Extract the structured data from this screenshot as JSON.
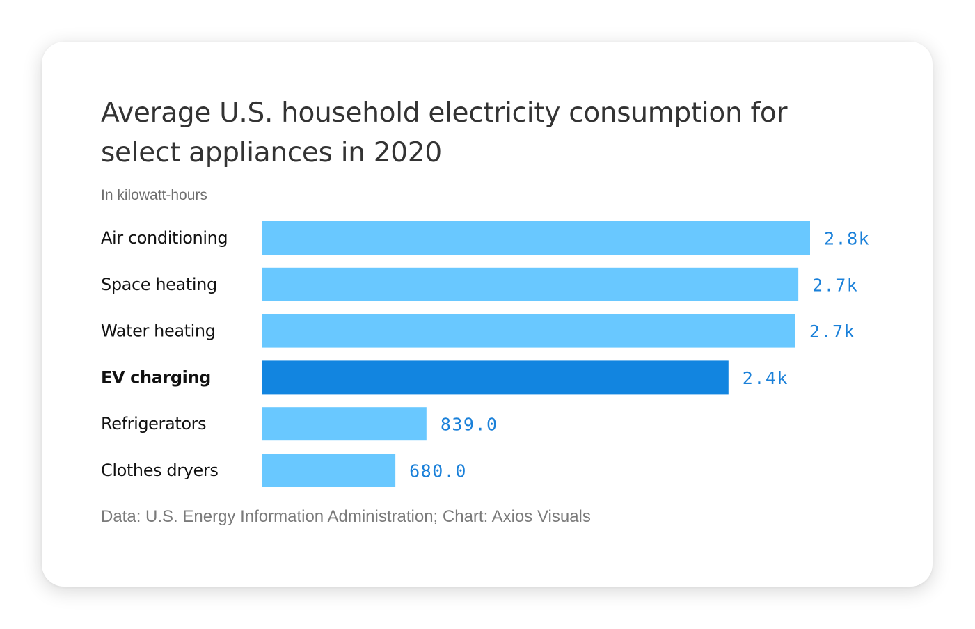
{
  "chart_data": {
    "type": "bar",
    "orientation": "horizontal",
    "title": "Average U.S. household electricity consumption for select appliances in 2020",
    "subtitle": "In kilowatt-hours",
    "source": "Data: U.S. Energy Information Administration; Chart: Axios Visuals",
    "categories": [
      "Air conditioning",
      "Space heating",
      "Water heating",
      "EV charging",
      "Refrigerators",
      "Clothes dryers"
    ],
    "values": [
      2800,
      2740,
      2725,
      2383,
      839,
      680
    ],
    "value_labels": [
      "2.8k",
      "2.7k",
      "2.7k",
      "2.4k",
      "839.0",
      "680.0"
    ],
    "highlight_category": "EV charging",
    "xlim": [
      0,
      2800
    ],
    "grid": false,
    "legend": "none"
  },
  "colors": {
    "bar": "#69c8ff",
    "highlight_bar": "#1285e0",
    "value_label": "#1a80d9",
    "category_label": "#111111",
    "title": "#333333"
  }
}
